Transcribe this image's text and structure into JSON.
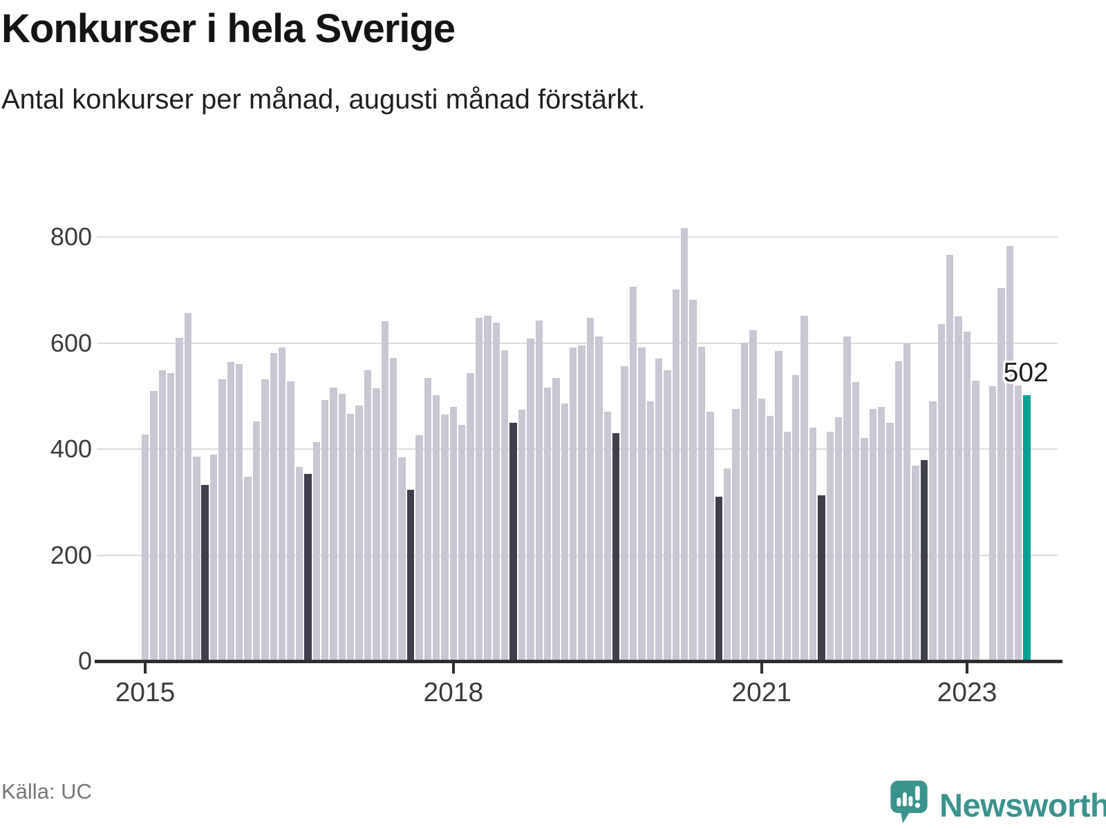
{
  "header": {
    "title": "Konkurser i hela Sverige",
    "subtitle": "Antal konkurser per månad, augusti månad förstärkt."
  },
  "footer": {
    "source": "Källa: UC",
    "brand": "Newsworthy"
  },
  "chart_data": {
    "type": "bar",
    "title": "Konkurser i hela Sverige",
    "subtitle": "Antal konkurser per månad, augusti månad förstärkt.",
    "ylabel": "Antal konkurser",
    "xlabel": "",
    "ylim": [
      0,
      850
    ],
    "yticks": [
      0,
      200,
      400,
      600,
      800
    ],
    "grid": "horizontal",
    "note": "August bars emphasized dark; August 2023 highlighted teal; March 2023 has no bar (missing value).",
    "annotation": {
      "text": "502",
      "value": 502,
      "month": "2023-08"
    },
    "xticks": [
      {
        "label": "2015",
        "month_index": 0
      },
      {
        "label": "2018",
        "month_index": 36
      },
      {
        "label": "2021",
        "month_index": 72
      },
      {
        "label": "2023",
        "month_index": 96
      }
    ],
    "highlight_rule": "august",
    "colors": {
      "default": "#c9c7d1",
      "august": "#3f404c",
      "highlight": "#00a197",
      "axis": "#2e2e2e",
      "grid": "#dcdcdc"
    },
    "series": [
      {
        "year": 2015,
        "values": [
          427,
          509,
          548,
          543,
          610,
          657,
          386,
          332,
          390,
          531,
          564,
          560
        ]
      },
      {
        "year": 2016,
        "values": [
          348,
          452,
          531,
          581,
          591,
          528,
          366,
          353,
          413,
          493,
          516,
          504
        ]
      },
      {
        "year": 2017,
        "values": [
          467,
          482,
          549,
          515,
          641,
          572,
          384,
          323,
          426,
          534,
          501,
          465
        ]
      },
      {
        "year": 2018,
        "values": [
          479,
          446,
          543,
          648,
          652,
          638,
          586,
          450,
          474,
          608,
          642,
          516
        ]
      },
      {
        "year": 2019,
        "values": [
          534,
          486,
          591,
          596,
          648,
          612,
          471,
          430,
          556,
          706,
          591,
          490
        ]
      },
      {
        "year": 2020,
        "values": [
          571,
          548,
          701,
          817,
          681,
          593,
          471,
          310,
          363,
          476,
          601,
          624
        ]
      },
      {
        "year": 2021,
        "values": [
          495,
          462,
          585,
          432,
          539,
          652,
          441,
          313,
          432,
          460,
          613,
          526
        ]
      },
      {
        "year": 2022,
        "values": [
          421,
          476,
          480,
          450,
          565,
          600,
          369,
          379,
          490,
          636,
          766,
          650
        ]
      },
      {
        "year": 2023,
        "values": [
          622,
          529,
          null,
          519,
          703,
          783,
          520,
          502
        ]
      }
    ]
  }
}
